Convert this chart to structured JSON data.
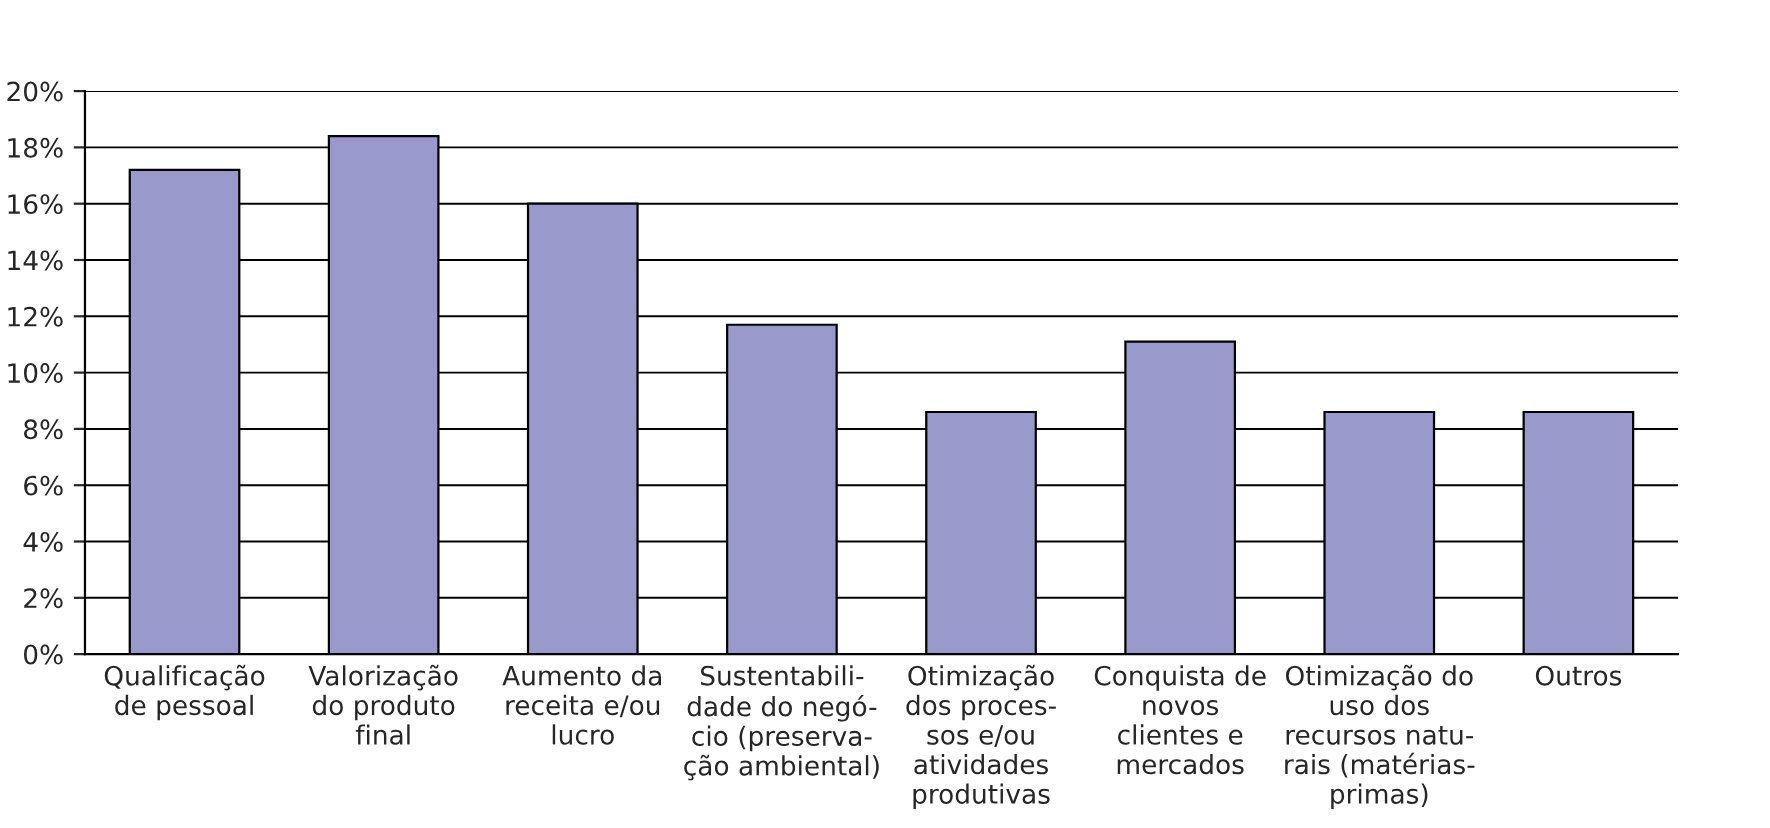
{
  "chart_data": {
    "type": "bar",
    "categories": [
      "Qualificação\nde pessoal",
      "Valorização\ndo produto\nfinal",
      "Aumento da\nreceita e/ou\nlucro",
      "Sustentabili-\ndade do negó-\ncio (preserva-\nção ambiental)",
      "Otimização\ndos proces-\nsos e/ou\natividades\nprodutivas",
      "Conquista de\nnovos\nclientes e\nmercados",
      "Otimização do\nuso dos\nrecursos natu-\nrais (matérias-\nprimas)",
      "Outros"
    ],
    "values": [
      17.2,
      18.4,
      16.0,
      11.7,
      8.6,
      11.1,
      8.6,
      8.6
    ],
    "color": "#9999cc",
    "ylim": [
      0,
      20
    ],
    "yticks": [
      {
        "value": 0,
        "label": "0%"
      },
      {
        "value": 2,
        "label": "2%"
      },
      {
        "value": 4,
        "label": "4%"
      },
      {
        "value": 6,
        "label": "6%"
      },
      {
        "value": 8,
        "label": "8%"
      },
      {
        "value": 10,
        "label": "10%"
      },
      {
        "value": 12,
        "label": "12%"
      },
      {
        "value": 14,
        "label": "14%"
      },
      {
        "value": 16,
        "label": "16%"
      },
      {
        "value": 18,
        "label": "18%"
      },
      {
        "value": 20,
        "label": "20%"
      }
    ],
    "grid": "y"
  }
}
